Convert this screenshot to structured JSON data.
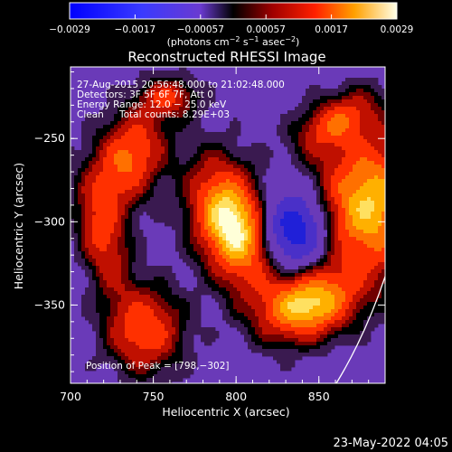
{
  "colorbar": {
    "ticks": [
      "−0.0029",
      "−0.0017",
      "−0.00057",
      "0.00057",
      "0.0017",
      "0.0029"
    ],
    "unit_main": "(photons cm",
    "unit_exp1": "−2",
    "unit_mid1": " s",
    "unit_exp2": "−1",
    "unit_mid2": " asec",
    "unit_exp3": "−2",
    "unit_end": ")"
  },
  "title": "Reconstructed RHESSI Image",
  "info": {
    "time": "27‑Aug‑2015 20:56:48.000 to 21:02:48.000",
    "detectors": "Detectors: 3F 5F 6F 7F, Att 0",
    "energy": "Energy Range: 12.0 − 25.0 keV",
    "clean": "Clean",
    "counts": "Total counts: 8.29E+03"
  },
  "peak_text": "Position of Peak = [798,−302]",
  "axes": {
    "xlabel": "Heliocentric X (arcsec)",
    "ylabel": "Heliocentric Y (arcsec)",
    "xticks": [
      {
        "value": 700,
        "label": "700"
      },
      {
        "value": 750,
        "label": "750"
      },
      {
        "value": 800,
        "label": "800"
      },
      {
        "value": 850,
        "label": "850"
      }
    ],
    "yticks": [
      {
        "value": -250,
        "label": "−250"
      },
      {
        "value": -300,
        "label": "−300"
      },
      {
        "value": -350,
        "label": "−350"
      }
    ],
    "xrange": [
      700,
      890
    ],
    "yrange": [
      -397,
      -207
    ]
  },
  "footer_timestamp": "23‑May‑2022 04:05",
  "image_data": {
    "sources": [
      {
        "x": 798,
        "y": -302,
        "sx": 15,
        "sy": 26,
        "amp": 1.0,
        "rot": 0.35
      },
      {
        "x": 880,
        "y": -290,
        "sx": 22,
        "sy": 30,
        "amp": 0.82,
        "rot": 0
      },
      {
        "x": 843,
        "y": -350,
        "sx": 20,
        "sy": 14,
        "amp": 0.85,
        "rot": 0.3
      },
      {
        "x": 735,
        "y": -262,
        "sx": 14,
        "sy": 22,
        "amp": 0.6,
        "rot": -0.4
      },
      {
        "x": 745,
        "y": -365,
        "sx": 16,
        "sy": 18,
        "amp": 0.55,
        "rot": 0
      },
      {
        "x": 720,
        "y": -310,
        "sx": 10,
        "sy": 24,
        "amp": 0.45,
        "rot": 0.2
      },
      {
        "x": 860,
        "y": -240,
        "sx": 18,
        "sy": 10,
        "amp": 0.45,
        "rot": 0.5
      },
      {
        "x": 760,
        "y": -225,
        "sx": 12,
        "sy": 8,
        "amp": 0.4,
        "rot": 0
      }
    ],
    "minimum": {
      "x": 835,
      "y": -305,
      "sx": 14,
      "sy": 16,
      "amp": -0.75
    }
  }
}
